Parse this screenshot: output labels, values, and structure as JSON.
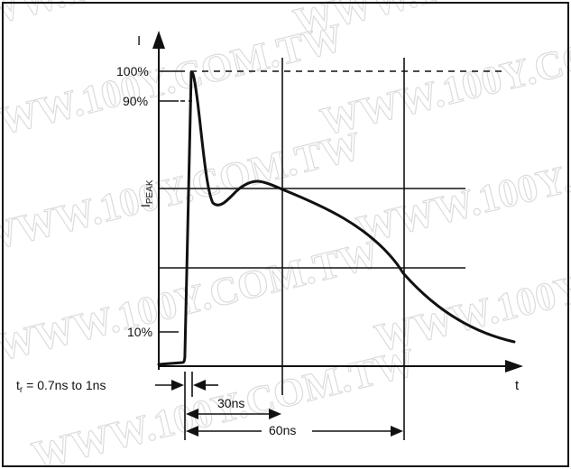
{
  "watermark": {
    "text": "WWW.100Y.COM.TW"
  },
  "axes": {
    "y_label": "I",
    "x_label": "t",
    "side_label_main": "I",
    "side_label_sub": "PEAK"
  },
  "y_ticks": {
    "p100": "100%",
    "p90": "90%",
    "p10": "10%"
  },
  "annotations": {
    "rise_main": "t",
    "rise_sub": "r",
    "rise_rest": " = 0.7ns to 1ns",
    "d30": "30ns",
    "d60": "60ns"
  }
}
